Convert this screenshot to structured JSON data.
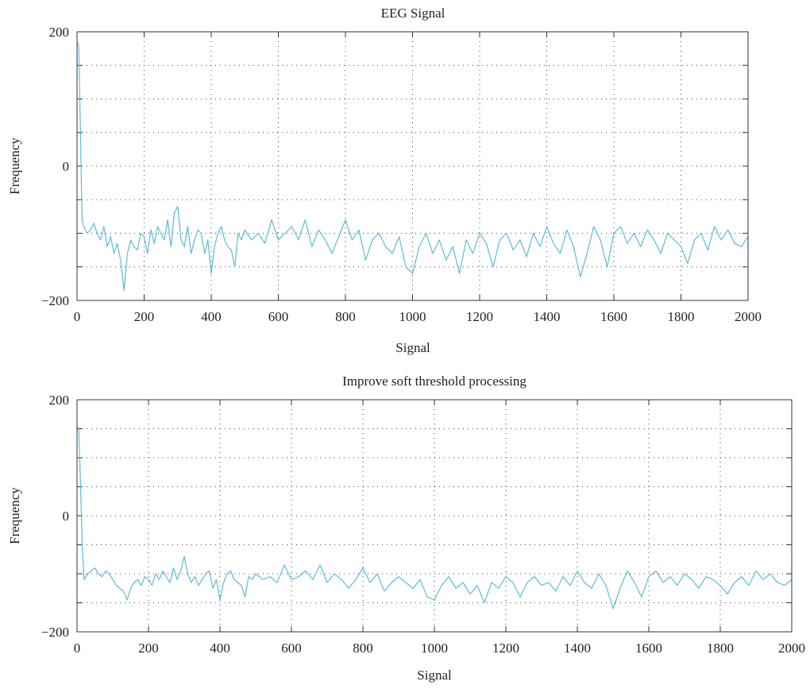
{
  "colors": {
    "series": "#5bbcd8",
    "axis": "#333333",
    "grid": "#444444"
  },
  "chart_data": [
    {
      "type": "line",
      "title": "EEG Signal",
      "xlabel": "Signal",
      "ylabel": "Frequency",
      "xlim": [
        0,
        2000
      ],
      "ylim": [
        -200,
        200
      ],
      "xticks": [
        0,
        200,
        400,
        600,
        800,
        1000,
        1200,
        1400,
        1600,
        1800,
        2000
      ],
      "yticks": [
        -200,
        0,
        200
      ],
      "xtick_labels": [
        "0",
        "200",
        "400",
        "600",
        "800",
        "1000",
        "1200",
        "1400",
        "1600",
        "1800",
        "2000"
      ],
      "ytick_labels": [
        "−200",
        "0",
        "200"
      ],
      "grid": true,
      "series": [
        {
          "x": [
            0,
            5,
            10,
            15,
            20,
            30,
            40,
            50,
            60,
            70,
            80,
            90,
            100,
            110,
            120,
            130,
            140,
            150,
            160,
            170,
            180,
            190,
            200,
            210,
            220,
            230,
            240,
            250,
            260,
            270,
            280,
            290,
            300,
            310,
            320,
            330,
            340,
            350,
            360,
            370,
            380,
            390,
            400,
            410,
            420,
            430,
            440,
            450,
            460,
            470,
            480,
            490,
            500,
            520,
            540,
            560,
            580,
            600,
            620,
            640,
            660,
            680,
            700,
            720,
            740,
            760,
            780,
            800,
            820,
            840,
            860,
            880,
            900,
            920,
            940,
            960,
            980,
            1000,
            1020,
            1040,
            1060,
            1080,
            1100,
            1120,
            1140,
            1160,
            1180,
            1200,
            1220,
            1240,
            1260,
            1280,
            1300,
            1320,
            1340,
            1360,
            1380,
            1400,
            1420,
            1440,
            1460,
            1480,
            1500,
            1520,
            1540,
            1560,
            1580,
            1600,
            1620,
            1640,
            1660,
            1680,
            1700,
            1720,
            1740,
            1760,
            1780,
            1800,
            1820,
            1840,
            1860,
            1880,
            1900,
            1920,
            1940,
            1960,
            1980,
            2000
          ],
          "y": [
            185,
            180,
            60,
            -80,
            -90,
            -100,
            -95,
            -85,
            -100,
            -110,
            -90,
            -120,
            -105,
            -130,
            -115,
            -140,
            -185,
            -130,
            -110,
            -120,
            -125,
            -100,
            -105,
            -130,
            -95,
            -115,
            -90,
            -100,
            -110,
            -80,
            -120,
            -70,
            -60,
            -110,
            -120,
            -90,
            -130,
            -110,
            -95,
            -100,
            -130,
            -110,
            -160,
            -120,
            -100,
            -90,
            -110,
            -120,
            -125,
            -150,
            -100,
            -110,
            -95,
            -110,
            -100,
            -115,
            -80,
            -110,
            -100,
            -90,
            -110,
            -80,
            -120,
            -95,
            -110,
            -130,
            -105,
            -80,
            -110,
            -95,
            -140,
            -110,
            -100,
            -120,
            -130,
            -105,
            -150,
            -160,
            -120,
            -100,
            -130,
            -110,
            -140,
            -120,
            -160,
            -110,
            -130,
            -100,
            -115,
            -150,
            -110,
            -100,
            -125,
            -110,
            -135,
            -100,
            -120,
            -90,
            -115,
            -130,
            -95,
            -120,
            -165,
            -130,
            -90,
            -110,
            -150,
            -100,
            -90,
            -115,
            -100,
            -120,
            -95,
            -110,
            -130,
            -100,
            -110,
            -120,
            -145,
            -110,
            -100,
            -125,
            -90,
            -110,
            -95,
            -115,
            -120,
            -105
          ]
        }
      ]
    },
    {
      "type": "line",
      "title": "Improve soft threshold processing",
      "xlabel": "Signal",
      "ylabel": "Frequency",
      "xlim": [
        0,
        2000
      ],
      "ylim": [
        -200,
        200
      ],
      "xticks": [
        0,
        200,
        400,
        600,
        800,
        1000,
        1200,
        1400,
        1600,
        1800,
        2000
      ],
      "yticks": [
        -200,
        0,
        200
      ],
      "xtick_labels": [
        "0",
        "200",
        "400",
        "600",
        "800",
        "1000",
        "1200",
        "1400",
        "1600",
        "1800",
        "2000"
      ],
      "ytick_labels": [
        "−200",
        "0",
        "200"
      ],
      "grid": true,
      "series": [
        {
          "x": [
            0,
            5,
            10,
            15,
            20,
            30,
            40,
            50,
            60,
            70,
            80,
            90,
            100,
            110,
            120,
            130,
            140,
            150,
            160,
            170,
            180,
            190,
            200,
            210,
            220,
            230,
            240,
            250,
            260,
            270,
            280,
            290,
            300,
            310,
            320,
            330,
            340,
            350,
            360,
            370,
            380,
            390,
            400,
            410,
            420,
            430,
            440,
            450,
            460,
            470,
            480,
            490,
            500,
            520,
            540,
            560,
            580,
            600,
            620,
            640,
            660,
            680,
            700,
            720,
            740,
            760,
            780,
            800,
            820,
            840,
            860,
            880,
            900,
            920,
            940,
            960,
            980,
            1000,
            1020,
            1040,
            1060,
            1080,
            1100,
            1120,
            1140,
            1160,
            1180,
            1200,
            1220,
            1240,
            1260,
            1280,
            1300,
            1320,
            1340,
            1360,
            1380,
            1400,
            1420,
            1440,
            1460,
            1480,
            1500,
            1520,
            1540,
            1560,
            1580,
            1600,
            1620,
            1640,
            1660,
            1680,
            1700,
            1720,
            1740,
            1760,
            1780,
            1800,
            1820,
            1840,
            1860,
            1880,
            1900,
            1920,
            1940,
            1960,
            1980,
            2000
          ],
          "y": [
            155,
            145,
            50,
            -60,
            -110,
            -100,
            -95,
            -90,
            -100,
            -105,
            -95,
            -100,
            -110,
            -120,
            -125,
            -130,
            -145,
            -125,
            -115,
            -110,
            -120,
            -105,
            -110,
            -120,
            -100,
            -110,
            -95,
            -105,
            -115,
            -90,
            -110,
            -95,
            -70,
            -100,
            -115,
            -105,
            -120,
            -110,
            -100,
            -95,
            -125,
            -110,
            -145,
            -115,
            -100,
            -95,
            -110,
            -115,
            -120,
            -140,
            -105,
            -110,
            -100,
            -110,
            -105,
            -115,
            -85,
            -110,
            -105,
            -95,
            -110,
            -85,
            -115,
            -100,
            -110,
            -125,
            -110,
            -90,
            -115,
            -100,
            -130,
            -115,
            -105,
            -115,
            -125,
            -110,
            -140,
            -145,
            -120,
            -105,
            -125,
            -115,
            -135,
            -120,
            -150,
            -115,
            -125,
            -105,
            -115,
            -140,
            -115,
            -105,
            -120,
            -115,
            -130,
            -105,
            -120,
            -95,
            -115,
            -125,
            -100,
            -120,
            -160,
            -125,
            -95,
            -115,
            -140,
            -105,
            -95,
            -115,
            -105,
            -120,
            -100,
            -110,
            -125,
            -105,
            -110,
            -120,
            -135,
            -115,
            -105,
            -120,
            -95,
            -110,
            -100,
            -115,
            -120,
            -110
          ]
        }
      ]
    }
  ]
}
